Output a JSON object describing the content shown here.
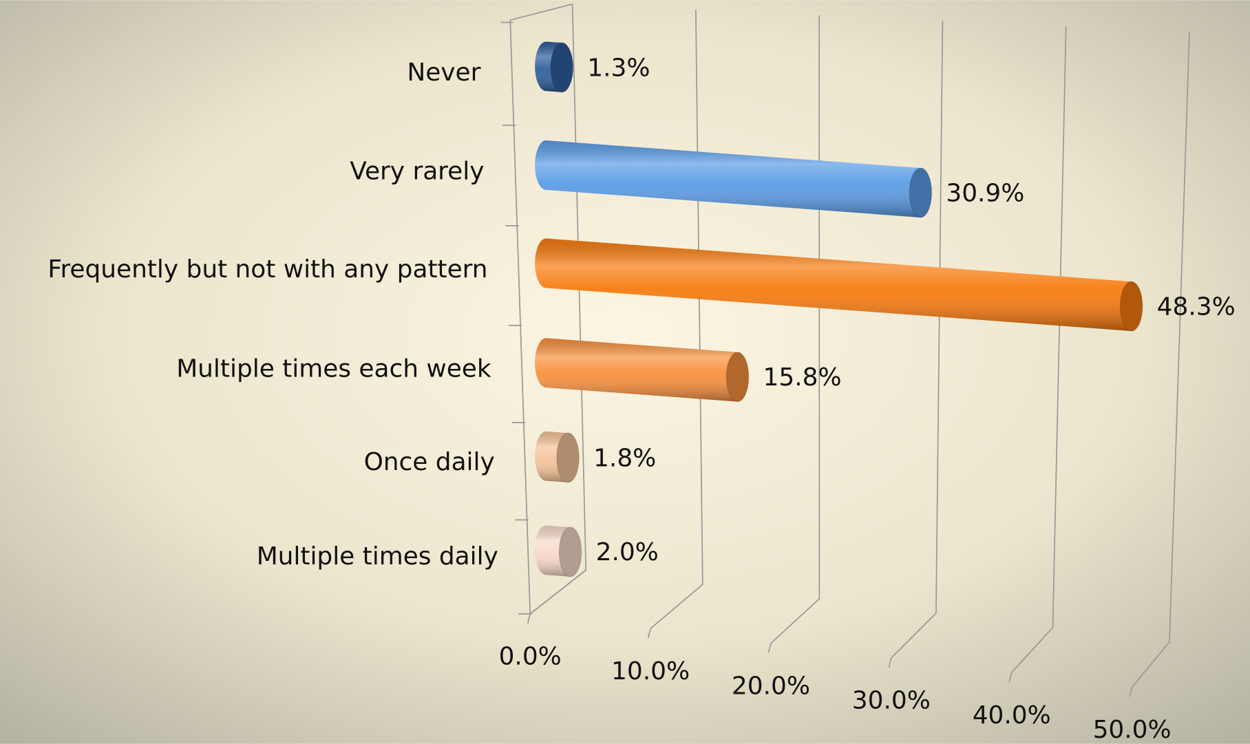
{
  "chart_data": {
    "type": "bar",
    "orientation": "horizontal",
    "categories": [
      "Never",
      "Very rarely",
      "Frequently but not with any pattern",
      "Multiple times each week",
      "Once daily",
      "Multiple times daily"
    ],
    "values": [
      1.3,
      30.9,
      48.3,
      15.8,
      1.8,
      2.0
    ],
    "value_labels": [
      "1.3%",
      "30.9%",
      "48.3%",
      "15.8%",
      "1.8%",
      "2.0%"
    ],
    "colors": [
      "#2f5f9e",
      "#5b9de6",
      "#f77b0f",
      "#f7913f",
      "#f6c49a",
      "#f8d9c9"
    ],
    "xlim": [
      0,
      50
    ],
    "xticks": [
      {
        "value": 0,
        "label": "0.0%"
      },
      {
        "value": 10,
        "label": "10.0%"
      },
      {
        "value": 20,
        "label": "20.0%"
      },
      {
        "value": 30,
        "label": "30.0%"
      },
      {
        "value": 40,
        "label": "40.0%"
      },
      {
        "value": 50,
        "label": "50.0%"
      }
    ],
    "grid": true
  }
}
